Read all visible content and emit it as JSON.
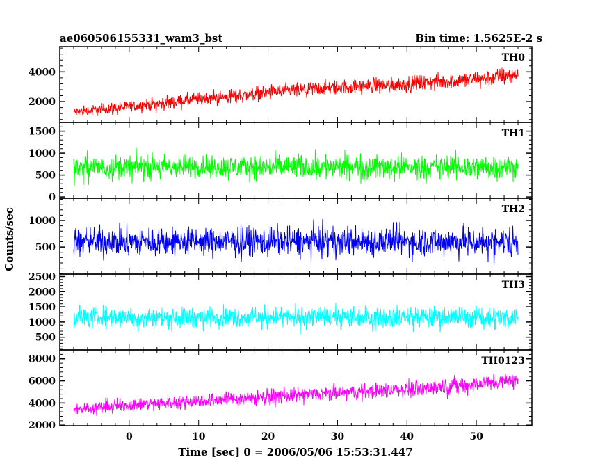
{
  "header": {
    "file_name": "ae060506155331_wam3_bst",
    "bin_time": "Bin time: 1.5625E-2 s"
  },
  "chart_data": {
    "type": "line",
    "xlabel": "Time [sec] 0 = 2006/05/06 15:53:31.447",
    "ylabel": "Counts/sec",
    "xlim": [
      -10,
      58
    ],
    "x_ticks": [
      0,
      10,
      20,
      30,
      40,
      50
    ],
    "x_range": [
      -8,
      56
    ],
    "panels": [
      {
        "name": "TH0",
        "color": "#ff0000",
        "ylim": [
          600,
          5700
        ],
        "y_ticks": [
          2000,
          4000
        ],
        "series": {
          "x": [
            -8,
            0,
            10,
            20,
            30,
            40,
            50,
            56
          ],
          "y_mean": [
            1300,
            1650,
            2150,
            2600,
            2950,
            3200,
            3500,
            3800
          ],
          "y_spread": [
            650,
            750,
            850,
            900,
            950,
            1000,
            1050,
            1100
          ]
        }
      },
      {
        "name": "TH1",
        "color": "#00ff00",
        "ylim": [
          -30,
          1700
        ],
        "y_ticks": [
          0,
          500,
          1000,
          1500
        ],
        "series": {
          "x": [
            -8,
            56
          ],
          "y_mean": [
            680,
            680
          ],
          "y_spread": [
            520,
            520
          ]
        }
      },
      {
        "name": "TH2",
        "color": "#0000ff",
        "ylim": [
          -10,
          1420
        ],
        "y_ticks": [
          500,
          1000
        ],
        "series": {
          "x": [
            -8,
            56
          ],
          "y_mean": [
            600,
            600
          ],
          "y_spread": [
            520,
            520
          ]
        }
      },
      {
        "name": "TH3",
        "color": "#00ffff",
        "ylim": [
          80,
          2580
        ],
        "y_ticks": [
          500,
          1000,
          1500,
          2000,
          2500
        ],
        "series": {
          "x": [
            -8,
            56
          ],
          "y_mean": [
            1150,
            1150
          ],
          "y_spread": [
            650,
            650
          ]
        }
      },
      {
        "name": "TH0123",
        "color": "#ff00ff",
        "ylim": [
          1950,
          8800
        ],
        "y_ticks": [
          2000,
          4000,
          6000,
          8000
        ],
        "series": {
          "x": [
            -8,
            0,
            10,
            20,
            30,
            40,
            50,
            56
          ],
          "y_mean": [
            3450,
            3800,
            4200,
            4550,
            4900,
            5250,
            5700,
            6050
          ],
          "y_spread": [
            1100,
            1150,
            1200,
            1250,
            1300,
            1350,
            1400,
            1450
          ]
        }
      }
    ]
  }
}
